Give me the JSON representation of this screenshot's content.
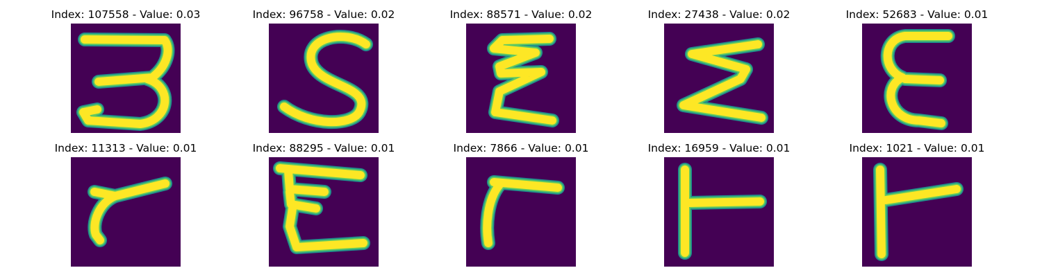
{
  "panels": [
    {
      "title": "Index: 107558 - Value: 0.03",
      "glyph": "three"
    },
    {
      "title": "Index: 96758 - Value: 0.02",
      "glyph": "s"
    },
    {
      "title": "Index: 88571 - Value: 0.02",
      "glyph": "epsilon-narrow"
    },
    {
      "title": "Index: 27438 - Value: 0.02",
      "glyph": "sigma"
    },
    {
      "title": "Index: 52683 - Value: 0.01",
      "glyph": "epsilon-round"
    },
    {
      "title": "Index: 11313 - Value: 0.01",
      "glyph": "gamma-curved"
    },
    {
      "title": "Index: 88295 - Value: 0.01",
      "glyph": "epsilon-wide"
    },
    {
      "title": "Index: 7866 - Value: 0.01",
      "glyph": "gamma"
    },
    {
      "title": "Index: 16959 - Value: 0.01",
      "glyph": "tee"
    },
    {
      "title": "Index: 1021 - Value: 0.01",
      "glyph": "tee-slanted"
    }
  ],
  "colors": {
    "background": "#440154",
    "stroke_outer": "#21918c",
    "stroke_mid": "#5ec962",
    "stroke_core": "#fde725"
  }
}
